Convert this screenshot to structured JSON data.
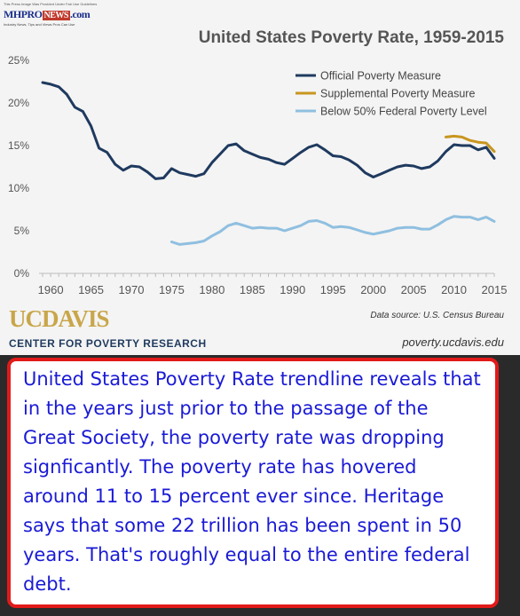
{
  "logo": {
    "small_text": "This Press Image Was Provided Under Fair Use Guidelines",
    "brand_mh": "MHPRO",
    "brand_news": "NEWS",
    "brand_suffix": ".com",
    "tagline": "Industry News, Tips and Views Pros Can Use"
  },
  "chart_data": {
    "type": "line",
    "title": "United States Poverty Rate, 1959-2015",
    "xlim": [
      1959,
      2015
    ],
    "ylim": [
      0,
      25
    ],
    "x_ticks": [
      1960,
      1965,
      1970,
      1975,
      1980,
      1985,
      1990,
      1995,
      2000,
      2005,
      2010,
      2015
    ],
    "x_tick_labels": [
      "1960",
      "1965",
      "1970",
      "1975",
      "1980",
      "1985",
      "1990",
      "1995",
      "2000",
      "2005",
      "2010",
      "2015"
    ],
    "y_ticks": [
      0,
      5,
      10,
      15,
      20,
      25
    ],
    "y_tick_labels": [
      "0%",
      "5%",
      "10%",
      "15%",
      "20%",
      "25%"
    ],
    "grid": false,
    "legend_position": "top-right",
    "series": [
      {
        "name": "Official Poverty Measure",
        "color": "#1f3a5f",
        "x": [
          1959,
          1960,
          1961,
          1962,
          1963,
          1964,
          1965,
          1966,
          1967,
          1968,
          1969,
          1970,
          1971,
          1972,
          1973,
          1974,
          1975,
          1976,
          1977,
          1978,
          1979,
          1980,
          1981,
          1982,
          1983,
          1984,
          1985,
          1986,
          1987,
          1988,
          1989,
          1990,
          1991,
          1992,
          1993,
          1994,
          1995,
          1996,
          1997,
          1998,
          1999,
          2000,
          2001,
          2002,
          2003,
          2004,
          2005,
          2006,
          2007,
          2008,
          2009,
          2010,
          2011,
          2012,
          2013,
          2014,
          2015
        ],
        "y": [
          22.4,
          22.2,
          21.9,
          21.0,
          19.5,
          19.0,
          17.3,
          14.7,
          14.2,
          12.8,
          12.1,
          12.6,
          12.5,
          11.9,
          11.1,
          11.2,
          12.3,
          11.8,
          11.6,
          11.4,
          11.7,
          13.0,
          14.0,
          15.0,
          15.2,
          14.4,
          14.0,
          13.6,
          13.4,
          13.0,
          12.8,
          13.5,
          14.2,
          14.8,
          15.1,
          14.5,
          13.8,
          13.7,
          13.3,
          12.7,
          11.8,
          11.3,
          11.7,
          12.1,
          12.5,
          12.7,
          12.6,
          12.3,
          12.5,
          13.2,
          14.3,
          15.1,
          15.0,
          15.0,
          14.5,
          14.8,
          13.5
        ]
      },
      {
        "name": "Supplemental Poverty Measure",
        "color": "#c8961e",
        "x": [
          2009,
          2010,
          2011,
          2012,
          2013,
          2014,
          2015
        ],
        "y": [
          16.0,
          16.1,
          16.0,
          15.6,
          15.4,
          15.3,
          14.3
        ]
      },
      {
        "name": "Below 50% Federal Poverty Level",
        "color": "#8fbfe0",
        "x": [
          1975,
          1976,
          1977,
          1978,
          1979,
          1980,
          1981,
          1982,
          1983,
          1984,
          1985,
          1986,
          1987,
          1988,
          1989,
          1990,
          1991,
          1992,
          1993,
          1994,
          1995,
          1996,
          1997,
          1998,
          1999,
          2000,
          2001,
          2002,
          2003,
          2004,
          2005,
          2006,
          2007,
          2008,
          2009,
          2010,
          2011,
          2012,
          2013,
          2014,
          2015
        ],
        "y": [
          3.7,
          3.4,
          3.5,
          3.6,
          3.8,
          4.4,
          4.9,
          5.6,
          5.9,
          5.6,
          5.3,
          5.4,
          5.3,
          5.3,
          5.0,
          5.3,
          5.6,
          6.1,
          6.2,
          5.9,
          5.4,
          5.5,
          5.4,
          5.1,
          4.8,
          4.6,
          4.8,
          5.0,
          5.3,
          5.4,
          5.4,
          5.2,
          5.2,
          5.7,
          6.3,
          6.7,
          6.6,
          6.6,
          6.3,
          6.6,
          6.1
        ]
      }
    ]
  },
  "source_text": "Data source: U.S. Census Bureau",
  "ucd": {
    "name": "UCDAVIS",
    "subtitle": "CENTER FOR POVERTY RESEARCH",
    "url": "poverty.ucdavis.edu"
  },
  "caption": "United States Poverty Rate trendline reveals that in the years just prior to the passage of the Great Society, the poverty rate was dropping signficantly. The poverty rate has hovered around 11 to 15 percent ever since. Heritage says that some 22 trillion has been spent in 50 years. That's roughly equal to the entire federal debt."
}
